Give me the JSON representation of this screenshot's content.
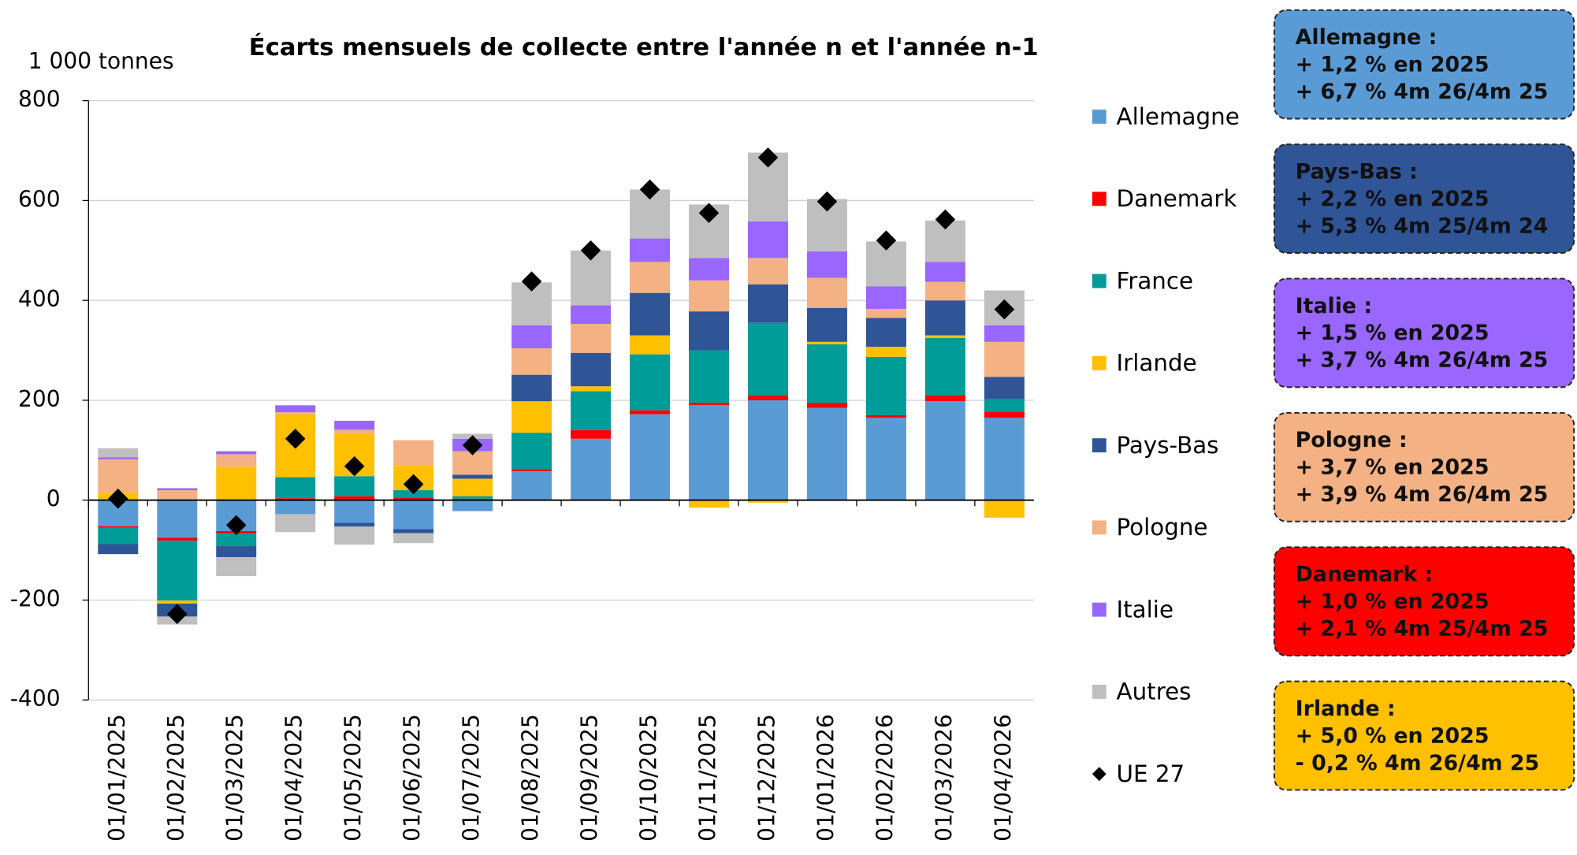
{
  "chart_data": {
    "type": "bar",
    "stacked": true,
    "title": "Écarts mensuels de collecte entre l'année n et l'année n-1",
    "y_label": "1 000 tonnes",
    "categories": [
      "01/01/2025",
      "01/02/2025",
      "01/03/2025",
      "01/04/2025",
      "01/05/2025",
      "01/06/2025",
      "01/07/2025",
      "01/08/2025",
      "01/09/2025",
      "01/10/2025",
      "01/11/2025",
      "01/12/2025",
      "01/01/2026",
      "01/02/2026",
      "01/03/2026",
      "01/04/2026"
    ],
    "ylim": [
      -400,
      800
    ],
    "yticks": [
      -400,
      -200,
      0,
      200,
      400,
      600,
      800
    ],
    "grid": true,
    "series": [
      {
        "name": "Allemagne",
        "color": "#5b9bd5",
        "values": [
          -52,
          -75,
          -62,
          -28,
          -45,
          -58,
          -22,
          58,
          123,
          172,
          190,
          200,
          185,
          165,
          198,
          165
        ]
      },
      {
        "name": "Danemark",
        "color": "#ff0000",
        "values": [
          -3,
          -6,
          -5,
          4,
          8,
          5,
          3,
          4,
          17,
          8,
          5,
          10,
          10,
          5,
          12,
          12
        ]
      },
      {
        "name": "France",
        "color": "#009c97",
        "values": [
          -33,
          -120,
          -25,
          42,
          40,
          15,
          5,
          73,
          78,
          112,
          105,
          145,
          117,
          117,
          115,
          25
        ]
      },
      {
        "name": "Irlande",
        "color": "#ffc000",
        "values": [
          15,
          -6,
          67,
          126,
          85,
          50,
          35,
          63,
          10,
          38,
          -15,
          -5,
          5,
          20,
          5,
          -35
        ]
      },
      {
        "name": "Pays-Bas",
        "color": "#2f5597",
        "values": [
          -20,
          -26,
          -22,
          0,
          -8,
          -8,
          8,
          53,
          67,
          85,
          78,
          77,
          68,
          58,
          70,
          45
        ]
      },
      {
        "name": "Pologne",
        "color": "#f4b183",
        "values": [
          67,
          20,
          25,
          4,
          8,
          50,
          47,
          53,
          58,
          62,
          62,
          53,
          60,
          18,
          37,
          70
        ]
      },
      {
        "name": "Italie",
        "color": "#9966ff",
        "values": [
          4,
          4,
          6,
          14,
          18,
          0,
          25,
          46,
          37,
          47,
          45,
          73,
          53,
          45,
          40,
          33
        ]
      },
      {
        "name": "Autres",
        "color": "#bfbfbf",
        "values": [
          18,
          -16,
          -38,
          -36,
          -36,
          -20,
          10,
          86,
          110,
          98,
          107,
          138,
          105,
          90,
          83,
          70
        ]
      }
    ],
    "marker_series": {
      "name": "UE 27",
      "color": "#000000",
      "values": [
        3,
        -228,
        -50,
        123,
        68,
        32,
        110,
        438,
        500,
        622,
        575,
        686,
        598,
        520,
        562,
        382
      ]
    },
    "boxes": [
      {
        "color": "#5b9bd5",
        "lines": [
          "Allemagne :",
          "+ 1,2 % en 2025",
          "+ 6,7 % 4m 26/4m 25"
        ]
      },
      {
        "color": "#2f5597",
        "lines": [
          "Pays-Bas :",
          "+ 2,2 % en 2025",
          "+ 5,3 % 4m 25/4m 24"
        ]
      },
      {
        "color": "#9966ff",
        "lines": [
          "Italie :",
          "+ 1,5 % en 2025",
          "+ 3,7 % 4m 26/4m 25"
        ]
      },
      {
        "color": "#f4b183",
        "lines": [
          "Pologne :",
          "+ 3,7 % en 2025",
          "+ 3,9 % 4m 26/4m 25"
        ]
      },
      {
        "color": "#ff0000",
        "lines": [
          "Danemark :",
          "+ 1,0 % en 2025",
          "+ 2,1 % 4m 25/4m 25"
        ]
      },
      {
        "color": "#ffc000",
        "lines": [
          "Irlande :",
          "+ 5,0 % en 2025",
          "- 0,2 % 4m 26/4m 25"
        ]
      }
    ]
  }
}
